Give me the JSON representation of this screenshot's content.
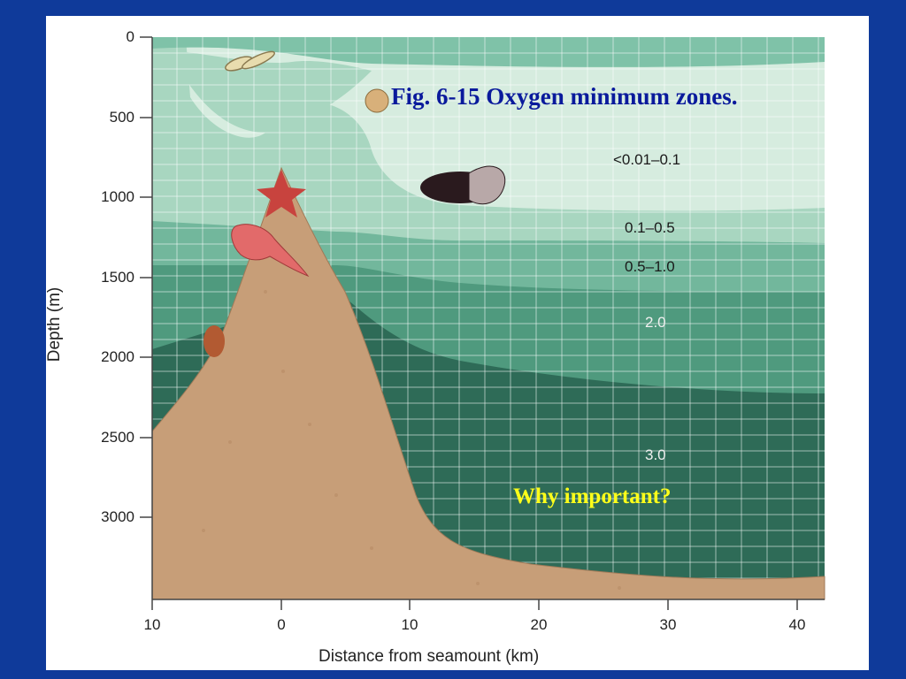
{
  "slide": {
    "title": "Fig. 6-15 Oxygen minimum zones.",
    "question": "Why important?",
    "colors": {
      "background": "#0f3a9a",
      "title": "#0a1a9c",
      "question": "#ffff1a"
    }
  },
  "figure": {
    "y_axis": {
      "label": "Depth (m)",
      "ticks": [
        "0",
        "500",
        "1000",
        "1500",
        "2000",
        "2500",
        "3000"
      ]
    },
    "x_axis": {
      "label": "Distance from seamount (km)",
      "ticks": [
        "10",
        "0",
        "10",
        "20",
        "30",
        "40"
      ]
    },
    "zones": [
      {
        "label": "<0.01–0.1",
        "color": "#d6ecdf"
      },
      {
        "label": "0.1–0.5",
        "color": "#a8d6c0"
      },
      {
        "label": "0.5–1.0",
        "color": "#72b79c"
      },
      {
        "label": "2.0",
        "color": "#4f9a7e"
      },
      {
        "label": "3.0",
        "color": "#2e6b57"
      }
    ],
    "seamount_color": "#c79e78",
    "organisms": [
      "krill-illustration",
      "jellyfish-illustration",
      "fish-illustration",
      "starfish-illustration",
      "crab-illustration",
      "octopus-illustration"
    ]
  }
}
